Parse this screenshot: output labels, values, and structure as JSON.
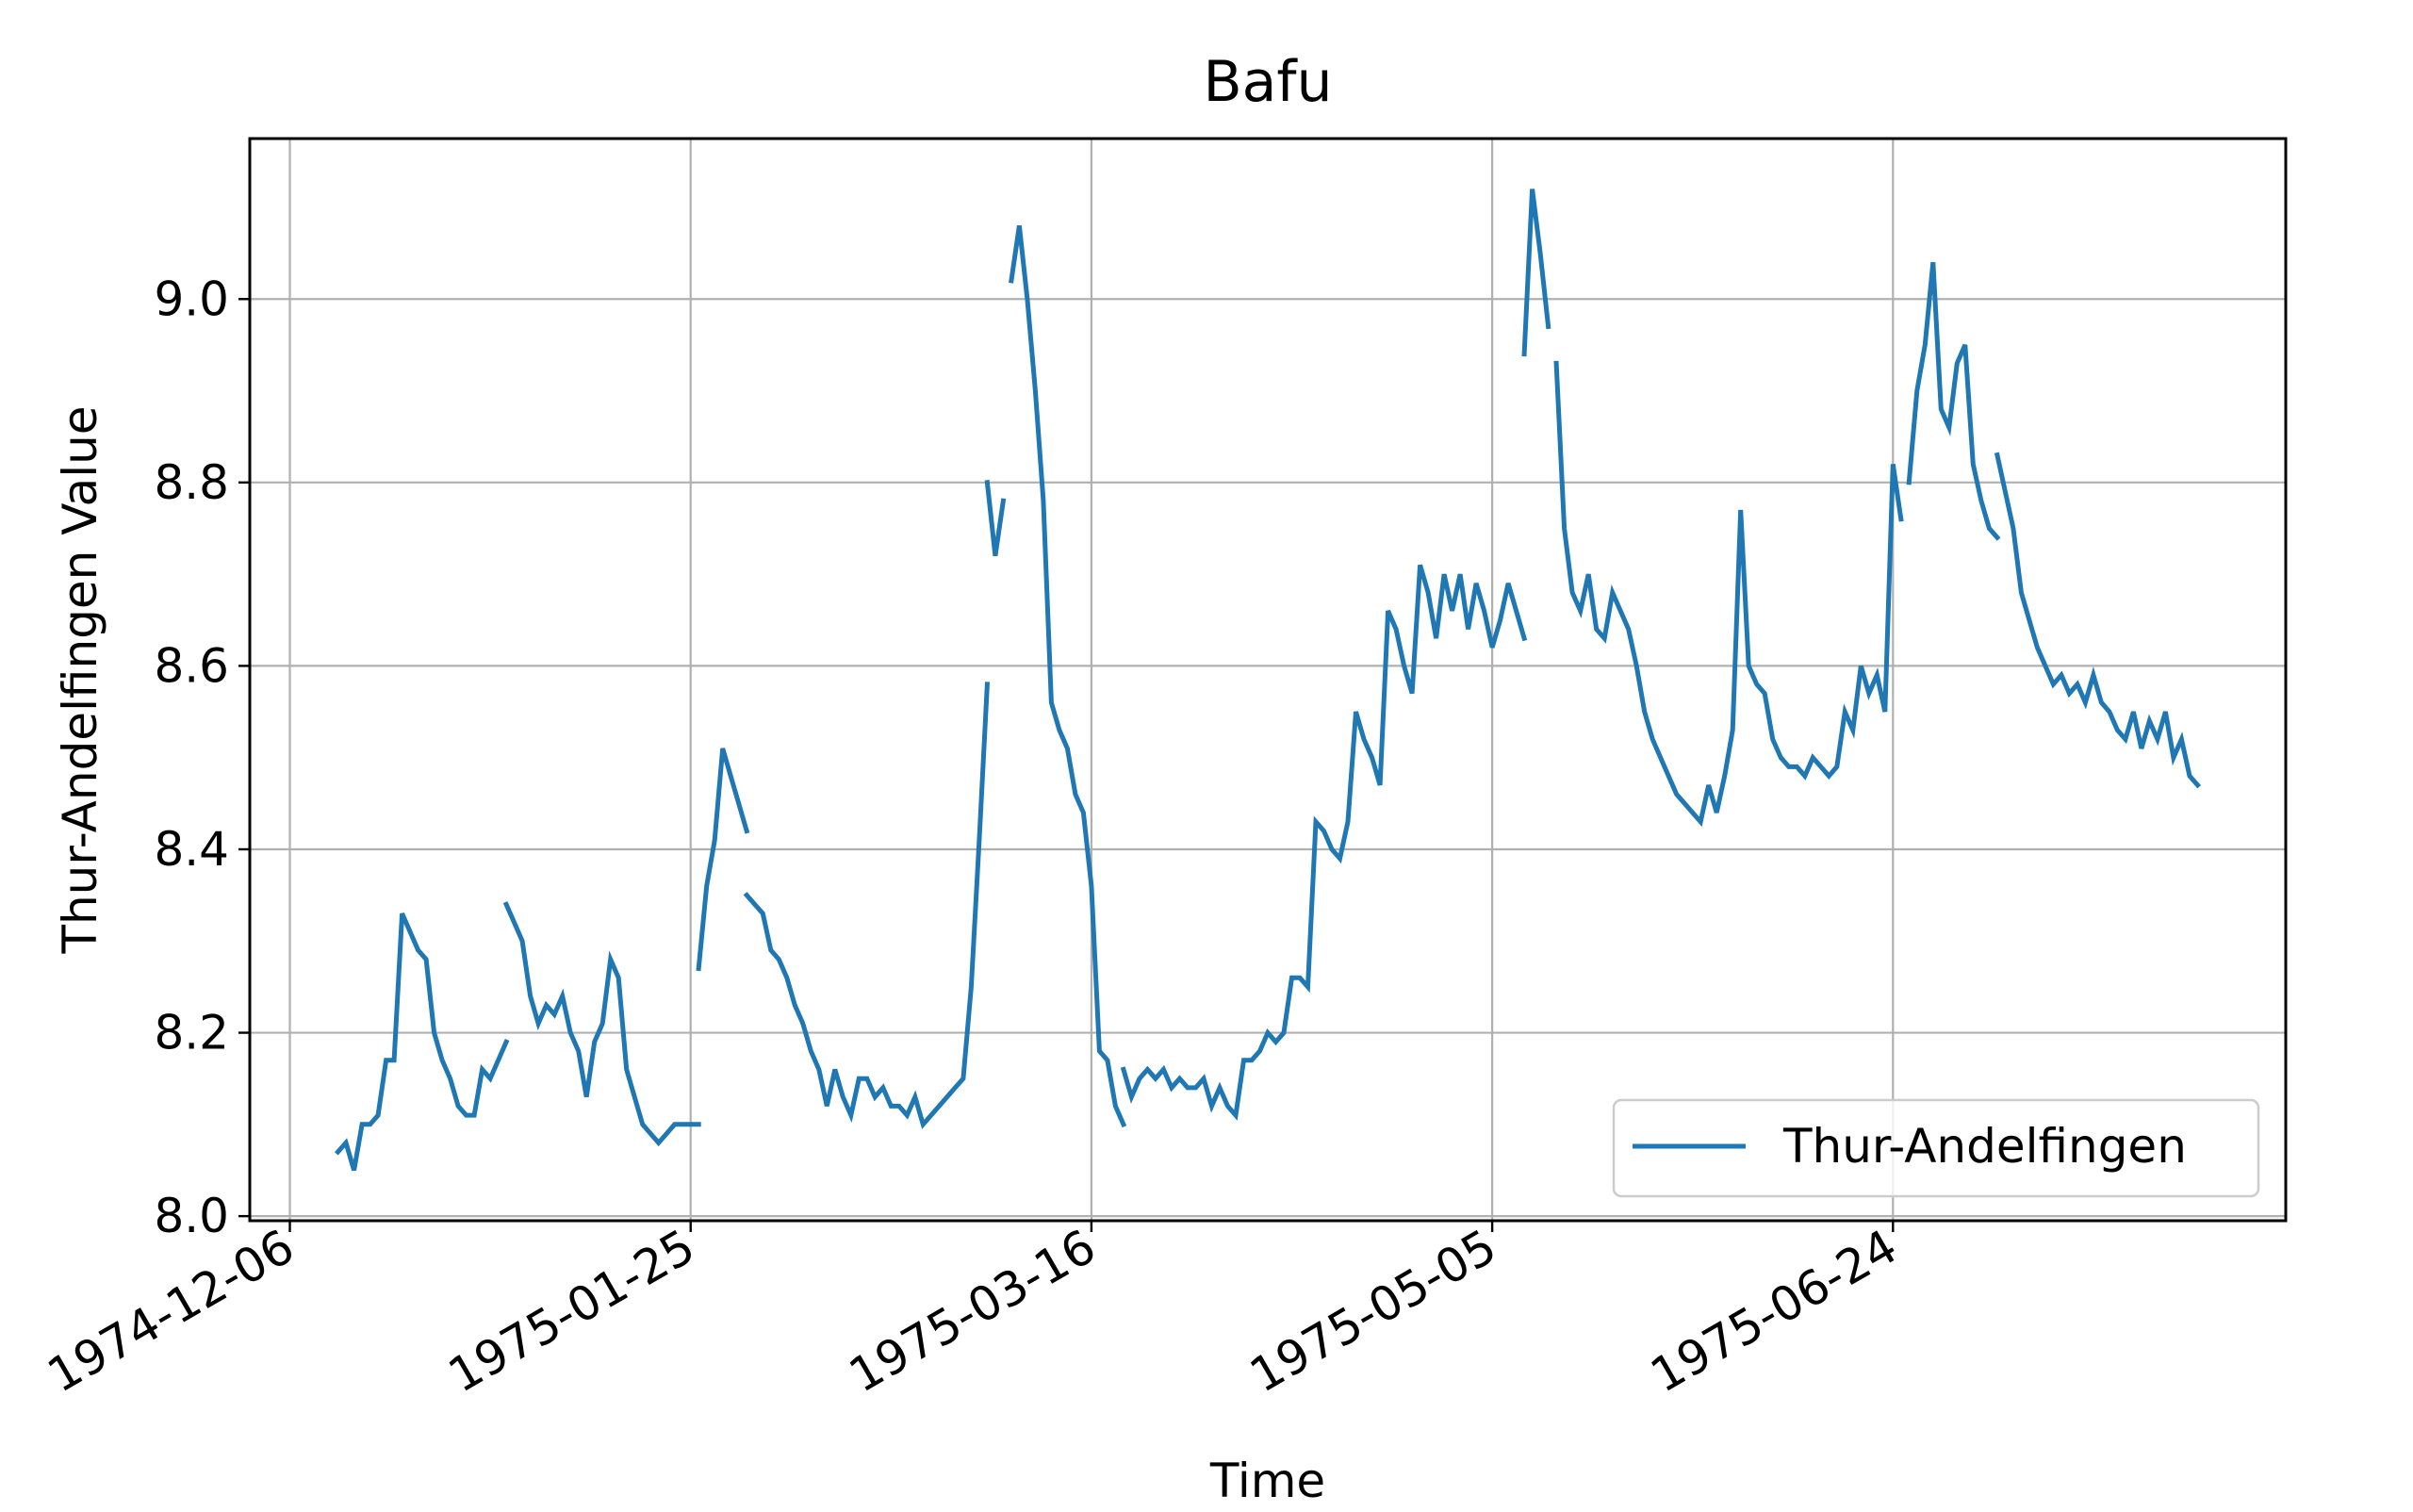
{
  "chart_data": {
    "type": "line",
    "title": "Bafu",
    "xlabel": "Time",
    "ylabel": "Thur-Andelfingen Value",
    "x_ticks": [
      "1974-12-06",
      "1975-01-25",
      "1975-03-16",
      "1975-05-05",
      "1975-06-24"
    ],
    "y_ticks": [
      "8.0",
      "8.2",
      "8.4",
      "8.6",
      "8.8",
      "9.0"
    ],
    "xlim": [
      "1974-12-01",
      "1975-08-12"
    ],
    "ylim": [
      7.995,
      9.175
    ],
    "grid": true,
    "legend": {
      "position": "lower-right",
      "entries": [
        "Thur-Andelfingen"
      ]
    },
    "colors": {
      "series": "#1f77b4"
    },
    "series": [
      {
        "name": "Thur-Andelfingen",
        "segments": [
          [
            [
              "1974-12-12",
              8.07
            ],
            [
              "1974-12-13",
              8.08
            ],
            [
              "1974-12-14",
              8.05
            ],
            [
              "1974-12-15",
              8.1
            ],
            [
              "1974-12-16",
              8.1
            ],
            [
              "1974-12-17",
              8.11
            ],
            [
              "1974-12-18",
              8.17
            ],
            [
              "1974-12-19",
              8.17
            ],
            [
              "1974-12-20",
              8.33
            ],
            [
              "1974-12-21",
              8.31
            ],
            [
              "1974-12-22",
              8.29
            ],
            [
              "1974-12-23",
              8.28
            ],
            [
              "1974-12-24",
              8.2
            ],
            [
              "1974-12-25",
              8.17
            ],
            [
              "1974-12-26",
              8.15
            ],
            [
              "1974-12-27",
              8.12
            ],
            [
              "1974-12-28",
              8.11
            ],
            [
              "1974-12-29",
              8.11
            ],
            [
              "1974-12-30",
              8.16
            ],
            [
              "1974-12-31",
              8.15
            ],
            [
              "1975-01-01",
              8.17
            ],
            [
              "1975-01-02",
              8.19
            ]
          ],
          [
            [
              "1975-01-02",
              8.34
            ],
            [
              "1975-01-03",
              8.32
            ],
            [
              "1975-01-04",
              8.3
            ],
            [
              "1975-01-05",
              8.24
            ],
            [
              "1975-01-06",
              8.21
            ],
            [
              "1975-01-07",
              8.23
            ],
            [
              "1975-01-08",
              8.22
            ],
            [
              "1975-01-09",
              8.24
            ],
            [
              "1975-01-10",
              8.2
            ],
            [
              "1975-01-11",
              8.18
            ],
            [
              "1975-01-12",
              8.13
            ],
            [
              "1975-01-13",
              8.19
            ],
            [
              "1975-01-14",
              8.21
            ],
            [
              "1975-01-15",
              8.28
            ],
            [
              "1975-01-16",
              8.26
            ],
            [
              "1975-01-17",
              8.16
            ],
            [
              "1975-01-18",
              8.13
            ],
            [
              "1975-01-19",
              8.1
            ],
            [
              "1975-01-20",
              8.09
            ],
            [
              "1975-01-21",
              8.08
            ],
            [
              "1975-01-22",
              8.09
            ],
            [
              "1975-01-23",
              8.1
            ],
            [
              "1975-01-24",
              8.1
            ],
            [
              "1975-01-25",
              8.1
            ],
            [
              "1975-01-26",
              8.1
            ]
          ],
          [
            [
              "1975-01-26",
              8.27
            ],
            [
              "1975-01-27",
              8.36
            ],
            [
              "1975-01-28",
              8.41
            ],
            [
              "1975-01-29",
              8.51
            ],
            [
              "1975-01-30",
              8.48
            ],
            [
              "1975-01-31",
              8.45
            ],
            [
              "1975-02-01",
              8.42
            ]
          ],
          [
            [
              "1975-02-01",
              8.35
            ],
            [
              "1975-02-02",
              8.34
            ],
            [
              "1975-02-03",
              8.33
            ],
            [
              "1975-02-04",
              8.29
            ],
            [
              "1975-02-05",
              8.28
            ],
            [
              "1975-02-06",
              8.26
            ],
            [
              "1975-02-07",
              8.23
            ],
            [
              "1975-02-08",
              8.21
            ],
            [
              "1975-02-09",
              8.18
            ],
            [
              "1975-02-10",
              8.16
            ],
            [
              "1975-02-11",
              8.12
            ],
            [
              "1975-02-12",
              8.16
            ],
            [
              "1975-02-13",
              8.13
            ],
            [
              "1975-02-14",
              8.11
            ],
            [
              "1975-02-15",
              8.15
            ],
            [
              "1975-02-16",
              8.15
            ],
            [
              "1975-02-17",
              8.13
            ],
            [
              "1975-02-18",
              8.14
            ],
            [
              "1975-02-19",
              8.12
            ],
            [
              "1975-02-20",
              8.12
            ],
            [
              "1975-02-21",
              8.11
            ],
            [
              "1975-02-22",
              8.13
            ],
            [
              "1975-02-23",
              8.1
            ],
            [
              "1975-02-24",
              8.11
            ],
            [
              "1975-02-25",
              8.12
            ],
            [
              "1975-02-26",
              8.13
            ],
            [
              "1975-02-27",
              8.14
            ],
            [
              "1975-02-28",
              8.15
            ],
            [
              "1975-03-01",
              8.25
            ],
            [
              "1975-03-02",
              8.41
            ],
            [
              "1975-03-03",
              8.58
            ]
          ],
          [
            [
              "1975-03-03",
              8.8
            ],
            [
              "1975-03-04",
              8.72
            ],
            [
              "1975-03-05",
              8.78
            ]
          ],
          [
            [
              "1975-03-06",
              9.02
            ],
            [
              "1975-03-07",
              9.08
            ],
            [
              "1975-03-08",
              9.0
            ],
            [
              "1975-03-09",
              8.9
            ],
            [
              "1975-03-10",
              8.78
            ],
            [
              "1975-03-11",
              8.56
            ],
            [
              "1975-03-12",
              8.53
            ],
            [
              "1975-03-13",
              8.51
            ],
            [
              "1975-03-14",
              8.46
            ],
            [
              "1975-03-15",
              8.44
            ],
            [
              "1975-03-16",
              8.36
            ],
            [
              "1975-03-17",
              8.18
            ],
            [
              "1975-03-18",
              8.17
            ],
            [
              "1975-03-19",
              8.12
            ],
            [
              "1975-03-20",
              8.1
            ]
          ],
          [
            [
              "1975-03-20",
              8.16
            ],
            [
              "1975-03-21",
              8.13
            ],
            [
              "1975-03-22",
              8.15
            ],
            [
              "1975-03-23",
              8.16
            ],
            [
              "1975-03-24",
              8.15
            ],
            [
              "1975-03-25",
              8.16
            ],
            [
              "1975-03-26",
              8.14
            ],
            [
              "1975-03-27",
              8.15
            ],
            [
              "1975-03-28",
              8.14
            ],
            [
              "1975-03-29",
              8.14
            ],
            [
              "1975-03-30",
              8.15
            ],
            [
              "1975-03-31",
              8.12
            ],
            [
              "1975-04-01",
              8.14
            ],
            [
              "1975-04-02",
              8.12
            ],
            [
              "1975-04-03",
              8.11
            ],
            [
              "1975-04-04",
              8.17
            ],
            [
              "1975-04-05",
              8.17
            ],
            [
              "1975-04-06",
              8.18
            ],
            [
              "1975-04-07",
              8.2
            ],
            [
              "1975-04-08",
              8.19
            ],
            [
              "1975-04-09",
              8.2
            ],
            [
              "1975-04-10",
              8.26
            ],
            [
              "1975-04-11",
              8.26
            ],
            [
              "1975-04-12",
              8.25
            ],
            [
              "1975-04-13",
              8.43
            ],
            [
              "1975-04-14",
              8.42
            ],
            [
              "1975-04-15",
              8.4
            ],
            [
              "1975-04-16",
              8.39
            ],
            [
              "1975-04-17",
              8.43
            ],
            [
              "1975-04-18",
              8.55
            ],
            [
              "1975-04-19",
              8.52
            ],
            [
              "1975-04-20",
              8.5
            ],
            [
              "1975-04-21",
              8.47
            ],
            [
              "1975-04-22",
              8.66
            ],
            [
              "1975-04-23",
              8.64
            ],
            [
              "1975-04-24",
              8.6
            ],
            [
              "1975-04-25",
              8.57
            ],
            [
              "1975-04-26",
              8.71
            ],
            [
              "1975-04-27",
              8.68
            ],
            [
              "1975-04-28",
              8.63
            ],
            [
              "1975-04-29",
              8.7
            ],
            [
              "1975-04-30",
              8.66
            ],
            [
              "1975-05-01",
              8.7
            ],
            [
              "1975-05-02",
              8.64
            ],
            [
              "1975-05-03",
              8.69
            ],
            [
              "1975-05-04",
              8.66
            ],
            [
              "1975-05-05",
              8.62
            ],
            [
              "1975-05-06",
              8.65
            ],
            [
              "1975-05-07",
              8.69
            ],
            [
              "1975-05-08",
              8.66
            ],
            [
              "1975-05-09",
              8.63
            ]
          ],
          [
            [
              "1975-05-09",
              8.94
            ],
            [
              "1975-05-10",
              9.12
            ],
            [
              "1975-05-11",
              9.05
            ],
            [
              "1975-05-12",
              8.97
            ]
          ],
          [
            [
              "1975-05-13",
              8.93
            ],
            [
              "1975-05-14",
              8.75
            ],
            [
              "1975-05-15",
              8.68
            ],
            [
              "1975-05-16",
              8.66
            ],
            [
              "1975-05-17",
              8.7
            ],
            [
              "1975-05-18",
              8.64
            ],
            [
              "1975-05-19",
              8.63
            ],
            [
              "1975-05-20",
              8.68
            ],
            [
              "1975-05-21",
              8.66
            ],
            [
              "1975-05-22",
              8.64
            ],
            [
              "1975-05-23",
              8.6
            ],
            [
              "1975-05-24",
              8.55
            ],
            [
              "1975-05-25",
              8.52
            ],
            [
              "1975-05-26",
              8.5
            ],
            [
              "1975-05-27",
              8.48
            ],
            [
              "1975-05-28",
              8.46
            ],
            [
              "1975-05-29",
              8.45
            ],
            [
              "1975-05-30",
              8.44
            ],
            [
              "1975-05-31",
              8.43
            ],
            [
              "1975-06-01",
              8.47
            ],
            [
              "1975-06-02",
              8.44
            ],
            [
              "1975-06-03",
              8.48
            ],
            [
              "1975-06-04",
              8.53
            ],
            [
              "1975-06-05",
              8.77
            ],
            [
              "1975-06-06",
              8.6
            ],
            [
              "1975-06-07",
              8.58
            ],
            [
              "1975-06-08",
              8.57
            ],
            [
              "1975-06-09",
              8.52
            ],
            [
              "1975-06-10",
              8.5
            ],
            [
              "1975-06-11",
              8.49
            ],
            [
              "1975-06-12",
              8.49
            ],
            [
              "1975-06-13",
              8.48
            ],
            [
              "1975-06-14",
              8.5
            ],
            [
              "1975-06-15",
              8.49
            ],
            [
              "1975-06-16",
              8.48
            ],
            [
              "1975-06-17",
              8.49
            ],
            [
              "1975-06-18",
              8.55
            ],
            [
              "1975-06-19",
              8.53
            ],
            [
              "1975-06-20",
              8.6
            ],
            [
              "1975-06-21",
              8.57
            ],
            [
              "1975-06-22",
              8.59
            ],
            [
              "1975-06-23",
              8.55
            ],
            [
              "1975-06-24",
              8.82
            ],
            [
              "1975-06-25",
              8.76
            ]
          ],
          [
            [
              "1975-06-26",
              8.8
            ],
            [
              "1975-06-27",
              8.9
            ],
            [
              "1975-06-28",
              8.95
            ],
            [
              "1975-06-29",
              9.04
            ],
            [
              "1975-06-30",
              8.88
            ],
            [
              "1975-07-01",
              8.86
            ],
            [
              "1975-07-02",
              8.93
            ],
            [
              "1975-07-03",
              8.95
            ],
            [
              "1975-07-04",
              8.82
            ],
            [
              "1975-07-05",
              8.78
            ],
            [
              "1975-07-06",
              8.75
            ],
            [
              "1975-07-07",
              8.74
            ]
          ],
          [
            [
              "1975-07-07",
              8.83
            ],
            [
              "1975-07-08",
              8.79
            ],
            [
              "1975-07-09",
              8.75
            ],
            [
              "1975-07-10",
              8.68
            ],
            [
              "1975-07-11",
              8.65
            ],
            [
              "1975-07-12",
              8.62
            ],
            [
              "1975-07-13",
              8.6
            ],
            [
              "1975-07-14",
              8.58
            ],
            [
              "1975-07-15",
              8.59
            ],
            [
              "1975-07-16",
              8.57
            ],
            [
              "1975-07-17",
              8.58
            ],
            [
              "1975-07-18",
              8.56
            ],
            [
              "1975-07-19",
              8.59
            ],
            [
              "1975-07-20",
              8.56
            ],
            [
              "1975-07-21",
              8.55
            ],
            [
              "1975-07-22",
              8.53
            ],
            [
              "1975-07-23",
              8.52
            ],
            [
              "1975-07-24",
              8.55
            ],
            [
              "1975-07-25",
              8.51
            ],
            [
              "1975-07-26",
              8.54
            ],
            [
              "1975-07-27",
              8.52
            ],
            [
              "1975-07-28",
              8.55
            ],
            [
              "1975-07-29",
              8.5
            ],
            [
              "1975-07-30",
              8.52
            ],
            [
              "1975-07-31",
              8.48
            ],
            [
              "1975-08-01",
              8.47
            ]
          ]
        ]
      }
    ]
  }
}
